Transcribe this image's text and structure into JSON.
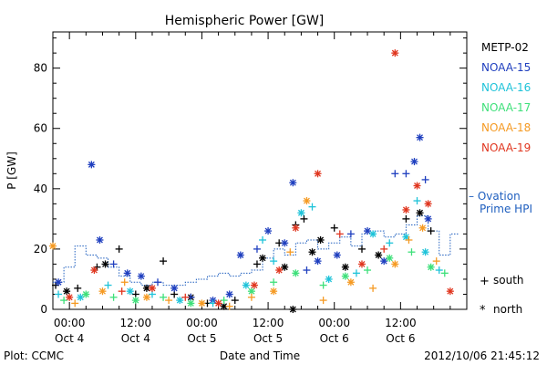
{
  "chart_data": {
    "type": "scatter",
    "title": "Hemispheric Power [GW]",
    "xlabel": "Date and Time",
    "ylabel": "P [GW]",
    "x_range": [
      "2012-10-03T21:00",
      "2012-10-07T00:00"
    ],
    "ylim": [
      0,
      92
    ],
    "yticks": [
      0,
      20,
      40,
      60,
      80
    ],
    "xticks": [
      {
        "at": "2012-10-04T00:00",
        "line1": "00:00",
        "line2": "Oct 4"
      },
      {
        "at": "2012-10-04T12:00",
        "line1": "12:00",
        "line2": "Oct 4"
      },
      {
        "at": "2012-10-05T00:00",
        "line1": "00:00",
        "line2": "Oct 5"
      },
      {
        "at": "2012-10-05T12:00",
        "line1": "12:00",
        "line2": "Oct 5"
      },
      {
        "at": "2012-10-06T00:00",
        "line1": "00:00",
        "line2": "Oct 6"
      },
      {
        "at": "2012-10-06T12:00",
        "line1": "12:00",
        "line2": "Oct 6"
      }
    ],
    "legend": {
      "placement": "right",
      "satellites": [
        {
          "name": "METP-02",
          "color": "#000000"
        },
        {
          "name": "NOAA-15",
          "color": "#1f3fbf"
        },
        {
          "name": "NOAA-16",
          "color": "#1fc3d9"
        },
        {
          "name": "NOAA-17",
          "color": "#3ee07a"
        },
        {
          "name": "NOAA-18",
          "color": "#f59a23"
        },
        {
          "name": "NOAA-19",
          "color": "#e0361f"
        }
      ],
      "model_line1": "– Ovation",
      "model_line2": "Prime HPI",
      "model_color": "#1f5fbf",
      "south_symbol": "+",
      "south_label": "south",
      "north_symbol": "*",
      "north_label": "north"
    },
    "model_series": {
      "name": "Ovation Prime HPI",
      "color": "#1f5fbf",
      "style": "dotted-step",
      "points": [
        [
          "2012-10-03T21:00",
          9
        ],
        [
          "2012-10-03T23:00",
          14
        ],
        [
          "2012-10-04T01:00",
          21
        ],
        [
          "2012-10-04T03:00",
          18
        ],
        [
          "2012-10-04T05:00",
          17
        ],
        [
          "2012-10-04T07:00",
          14
        ],
        [
          "2012-10-04T09:00",
          11
        ],
        [
          "2012-10-04T11:00",
          9
        ],
        [
          "2012-10-04T13:00",
          8
        ],
        [
          "2012-10-04T15:00",
          9
        ],
        [
          "2012-10-04T17:00",
          8
        ],
        [
          "2012-10-04T19:00",
          8
        ],
        [
          "2012-10-04T21:00",
          9
        ],
        [
          "2012-10-04T23:00",
          10
        ],
        [
          "2012-10-05T01:00",
          11
        ],
        [
          "2012-10-05T03:00",
          12
        ],
        [
          "2012-10-05T05:00",
          11
        ],
        [
          "2012-10-05T07:00",
          12
        ],
        [
          "2012-10-05T09:00",
          13
        ],
        [
          "2012-10-05T11:00",
          17
        ],
        [
          "2012-10-05T13:00",
          20
        ],
        [
          "2012-10-05T15:00",
          18
        ],
        [
          "2012-10-05T17:00",
          22
        ],
        [
          "2012-10-05T19:00",
          23
        ],
        [
          "2012-10-05T21:00",
          20
        ],
        [
          "2012-10-05T23:00",
          22
        ],
        [
          "2012-10-06T01:00",
          24
        ],
        [
          "2012-10-06T03:00",
          21
        ],
        [
          "2012-10-06T05:00",
          25
        ],
        [
          "2012-10-06T07:00",
          26
        ],
        [
          "2012-10-06T09:00",
          24
        ],
        [
          "2012-10-06T11:00",
          25
        ],
        [
          "2012-10-06T13:00",
          28
        ],
        [
          "2012-10-06T15:00",
          31
        ],
        [
          "2012-10-06T17:00",
          26
        ],
        [
          "2012-10-06T19:00",
          18
        ],
        [
          "2012-10-06T21:00",
          25
        ],
        [
          "2012-10-06T22:30",
          25
        ]
      ]
    },
    "series": [
      {
        "name": "METP-02",
        "color": "#000000",
        "points": [
          [
            "2012-10-03T21:30",
            8,
            "+"
          ],
          [
            "2012-10-03T23:30",
            6,
            "*"
          ],
          [
            "2012-10-04T01:30",
            7,
            "+"
          ],
          [
            "2012-10-04T05:00",
            14,
            "+"
          ],
          [
            "2012-10-04T06:30",
            15,
            "*"
          ],
          [
            "2012-10-04T09:00",
            20,
            "+"
          ],
          [
            "2012-10-04T12:00",
            5,
            "+"
          ],
          [
            "2012-10-04T14:00",
            7,
            "*"
          ],
          [
            "2012-10-04T17:00",
            16,
            "+"
          ],
          [
            "2012-10-04T19:00",
            5,
            "+"
          ],
          [
            "2012-10-04T22:00",
            4,
            "*"
          ],
          [
            "2012-10-05T01:00",
            2,
            "+"
          ],
          [
            "2012-10-05T04:00",
            1,
            "*"
          ],
          [
            "2012-10-05T06:00",
            3,
            "+"
          ],
          [
            "2012-10-05T10:00",
            15,
            "+"
          ],
          [
            "2012-10-05T11:00",
            17,
            "*"
          ],
          [
            "2012-10-05T14:00",
            22,
            "+"
          ],
          [
            "2012-10-05T15:00",
            14,
            "*"
          ],
          [
            "2012-10-05T17:00",
            28,
            "+"
          ],
          [
            "2012-10-05T18:30",
            30,
            "+"
          ],
          [
            "2012-10-05T20:00",
            19,
            "*"
          ],
          [
            "2012-10-05T21:30",
            23,
            "*"
          ],
          [
            "2012-10-06T00:00",
            27,
            "+"
          ],
          [
            "2012-10-06T02:00",
            14,
            "*"
          ],
          [
            "2012-10-06T05:00",
            20,
            "+"
          ],
          [
            "2012-10-06T08:00",
            18,
            "*"
          ],
          [
            "2012-10-06T13:00",
            30,
            "+"
          ],
          [
            "2012-10-06T15:30",
            32,
            "*"
          ],
          [
            "2012-10-06T17:30",
            26,
            "+"
          ],
          [
            "2012-10-05T16:30",
            0,
            "*"
          ]
        ]
      },
      {
        "name": "NOAA-15",
        "color": "#1f3fbf",
        "points": [
          [
            "2012-10-03T22:00",
            9,
            "*"
          ],
          [
            "2012-10-04T04:00",
            48,
            "*"
          ],
          [
            "2012-10-04T05:30",
            23,
            "*"
          ],
          [
            "2012-10-04T08:00",
            15,
            "+"
          ],
          [
            "2012-10-04T10:30",
            12,
            "*"
          ],
          [
            "2012-10-04T13:00",
            11,
            "*"
          ],
          [
            "2012-10-04T16:00",
            9,
            "+"
          ],
          [
            "2012-10-04T19:00",
            7,
            "*"
          ],
          [
            "2012-10-04T22:00",
            4,
            "+"
          ],
          [
            "2012-10-05T02:00",
            3,
            "*"
          ],
          [
            "2012-10-05T05:00",
            5,
            "*"
          ],
          [
            "2012-10-05T07:00",
            18,
            "*"
          ],
          [
            "2012-10-05T10:00",
            20,
            "+"
          ],
          [
            "2012-10-05T12:00",
            26,
            "*"
          ],
          [
            "2012-10-05T15:00",
            22,
            "*"
          ],
          [
            "2012-10-05T16:30",
            42,
            "*"
          ],
          [
            "2012-10-05T19:00",
            13,
            "+"
          ],
          [
            "2012-10-05T21:00",
            16,
            "*"
          ],
          [
            "2012-10-06T00:30",
            18,
            "*"
          ],
          [
            "2012-10-06T03:00",
            25,
            "+"
          ],
          [
            "2012-10-06T06:00",
            26,
            "*"
          ],
          [
            "2012-10-06T09:00",
            16,
            "*"
          ],
          [
            "2012-10-06T11:00",
            45,
            "+"
          ],
          [
            "2012-10-06T13:00",
            45,
            "+"
          ],
          [
            "2012-10-06T14:30",
            49,
            "*"
          ],
          [
            "2012-10-06T15:30",
            57,
            "*"
          ],
          [
            "2012-10-06T16:30",
            43,
            "+"
          ],
          [
            "2012-10-06T17:00",
            30,
            "*"
          ]
        ]
      },
      {
        "name": "NOAA-16",
        "color": "#1fc3d9",
        "points": [
          [
            "2012-10-03T22:00",
            5,
            "+"
          ],
          [
            "2012-10-04T02:00",
            4,
            "*"
          ],
          [
            "2012-10-04T07:00",
            8,
            "+"
          ],
          [
            "2012-10-04T11:00",
            6,
            "*"
          ],
          [
            "2012-10-04T15:00",
            5,
            "+"
          ],
          [
            "2012-10-04T20:00",
            3,
            "*"
          ],
          [
            "2012-10-05T02:00",
            2,
            "+"
          ],
          [
            "2012-10-05T08:00",
            8,
            "*"
          ],
          [
            "2012-10-05T11:00",
            23,
            "+"
          ],
          [
            "2012-10-05T13:00",
            16,
            "+"
          ],
          [
            "2012-10-05T18:00",
            32,
            "*"
          ],
          [
            "2012-10-05T20:00",
            34,
            "+"
          ],
          [
            "2012-10-05T23:00",
            10,
            "*"
          ],
          [
            "2012-10-06T04:00",
            12,
            "+"
          ],
          [
            "2012-10-06T07:00",
            25,
            "*"
          ],
          [
            "2012-10-06T10:00",
            22,
            "+"
          ],
          [
            "2012-10-06T13:00",
            24,
            "*"
          ],
          [
            "2012-10-06T15:00",
            36,
            "+"
          ],
          [
            "2012-10-06T16:30",
            19,
            "*"
          ],
          [
            "2012-10-06T19:00",
            13,
            "+"
          ]
        ]
      },
      {
        "name": "NOAA-17",
        "color": "#3ee07a",
        "points": [
          [
            "2012-10-03T23:00",
            3,
            "+"
          ],
          [
            "2012-10-04T03:00",
            5,
            "*"
          ],
          [
            "2012-10-04T08:00",
            4,
            "+"
          ],
          [
            "2012-10-04T12:00",
            3,
            "*"
          ],
          [
            "2012-10-04T17:00",
            4,
            "+"
          ],
          [
            "2012-10-04T22:00",
            2,
            "*"
          ],
          [
            "2012-10-05T04:00",
            3,
            "+"
          ],
          [
            "2012-10-05T09:00",
            6,
            "*"
          ],
          [
            "2012-10-05T13:00",
            9,
            "+"
          ],
          [
            "2012-10-05T17:00",
            12,
            "*"
          ],
          [
            "2012-10-05T22:00",
            8,
            "+"
          ],
          [
            "2012-10-06T02:00",
            11,
            "*"
          ],
          [
            "2012-10-06T06:00",
            13,
            "+"
          ],
          [
            "2012-10-06T10:00",
            17,
            "*"
          ],
          [
            "2012-10-06T14:00",
            19,
            "+"
          ],
          [
            "2012-10-06T17:30",
            14,
            "*"
          ],
          [
            "2012-10-06T20:00",
            12,
            "+"
          ]
        ]
      },
      {
        "name": "NOAA-18",
        "color": "#f59a23",
        "points": [
          [
            "2012-10-03T21:00",
            21,
            "*"
          ],
          [
            "2012-10-04T01:00",
            2,
            "+"
          ],
          [
            "2012-10-04T06:00",
            6,
            "*"
          ],
          [
            "2012-10-04T10:00",
            9,
            "+"
          ],
          [
            "2012-10-04T14:00",
            4,
            "*"
          ],
          [
            "2012-10-04T18:00",
            3,
            "+"
          ],
          [
            "2012-10-05T00:00",
            2,
            "*"
          ],
          [
            "2012-10-05T05:00",
            1,
            "+"
          ],
          [
            "2012-10-05T09:00",
            4,
            "+"
          ],
          [
            "2012-10-05T13:00",
            6,
            "*"
          ],
          [
            "2012-10-05T16:00",
            19,
            "+"
          ],
          [
            "2012-10-05T19:00",
            36,
            "*"
          ],
          [
            "2012-10-05T22:00",
            3,
            "+"
          ],
          [
            "2012-10-06T03:00",
            9,
            "*"
          ],
          [
            "2012-10-06T07:00",
            7,
            "+"
          ],
          [
            "2012-10-06T11:00",
            15,
            "*"
          ],
          [
            "2012-10-06T13:30",
            23,
            "+"
          ],
          [
            "2012-10-06T16:00",
            27,
            "*"
          ],
          [
            "2012-10-06T18:30",
            16,
            "+"
          ]
        ]
      },
      {
        "name": "NOAA-19",
        "color": "#e0361f",
        "points": [
          [
            "2012-10-04T00:00",
            4,
            "*"
          ],
          [
            "2012-10-04T04:30",
            13,
            "*"
          ],
          [
            "2012-10-04T09:30",
            6,
            "+"
          ],
          [
            "2012-10-04T15:00",
            7,
            "*"
          ],
          [
            "2012-10-04T21:00",
            4,
            "+"
          ],
          [
            "2012-10-05T03:00",
            2,
            "*"
          ],
          [
            "2012-10-05T09:30",
            8,
            "*"
          ],
          [
            "2012-10-05T14:00",
            13,
            "*"
          ],
          [
            "2012-10-05T17:00",
            27,
            "*"
          ],
          [
            "2012-10-05T21:00",
            45,
            "*"
          ],
          [
            "2012-10-06T01:00",
            25,
            "+"
          ],
          [
            "2012-10-06T05:00",
            15,
            "*"
          ],
          [
            "2012-10-06T09:00",
            20,
            "+"
          ],
          [
            "2012-10-06T11:00",
            85,
            "*"
          ],
          [
            "2012-10-06T13:00",
            33,
            "*"
          ],
          [
            "2012-10-06T15:00",
            41,
            "*"
          ],
          [
            "2012-10-06T17:00",
            35,
            "*"
          ],
          [
            "2012-10-06T21:00",
            6,
            "*"
          ]
        ]
      }
    ]
  },
  "footer": {
    "left": "Plot: CCMC",
    "center": "Date and Time",
    "right": "2012/10/06 21:45:12"
  }
}
